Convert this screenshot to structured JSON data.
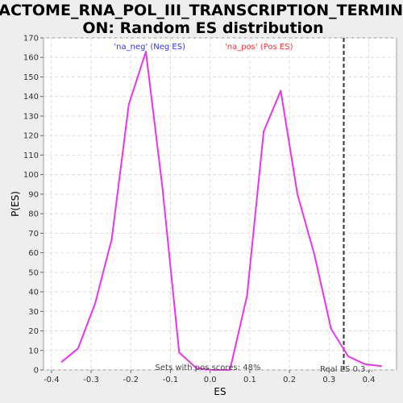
{
  "chart_data": {
    "type": "line",
    "title_line1": "REACTOME_RNA_POL_III_TRANSCRIPTION_TERMINATI",
    "title_line2": "ON: Random ES distribution",
    "xlabel": "ES",
    "ylabel": "P(ES)",
    "xlim": [
      -0.42,
      0.47
    ],
    "ylim": [
      0,
      170
    ],
    "x_ticks": [
      -0.4,
      -0.3,
      -0.2,
      -0.1,
      0.0,
      0.1,
      0.2,
      0.3,
      0.4
    ],
    "x_tick_labels": [
      "-0.4",
      "-0.3",
      "-0.2",
      "-0.1",
      "0.0",
      "0.1",
      "0.2",
      "0.3",
      "0.4"
    ],
    "y_ticks": [
      0,
      10,
      20,
      30,
      40,
      50,
      60,
      70,
      80,
      90,
      100,
      110,
      120,
      130,
      140,
      150,
      160,
      170
    ],
    "y_tick_labels": [
      "0",
      "10",
      "20",
      "30",
      "40",
      "50",
      "60",
      "70",
      "80",
      "90",
      "100",
      "110",
      "120",
      "130",
      "140",
      "150",
      "160",
      "170"
    ],
    "grid": true,
    "legend": {
      "placement": "top-center",
      "neg_label": "'na_neg' (Neg ES)",
      "pos_label": "'na_pos' (Pos ES)",
      "neg_color": "#3333ff",
      "pos_color": "#ff3333"
    },
    "series": [
      {
        "color": "#ee33ee",
        "x": [
          -0.375,
          -0.333,
          -0.29,
          -0.248,
          -0.205,
          -0.162,
          -0.12,
          -0.078,
          -0.035,
          0.008,
          0.05,
          0.093,
          0.135,
          0.178,
          0.22,
          0.263,
          0.305,
          0.348,
          0.39,
          0.433
        ],
        "y": [
          4,
          11,
          34,
          67,
          136,
          163,
          93,
          9,
          1,
          0,
          0,
          38,
          122,
          143,
          90,
          59,
          21,
          7,
          3,
          2
        ]
      }
    ],
    "real_es": 0.337,
    "real_es_label": "Real ES 0.3...",
    "sets_label": "Sets with pos scores: 48%"
  }
}
